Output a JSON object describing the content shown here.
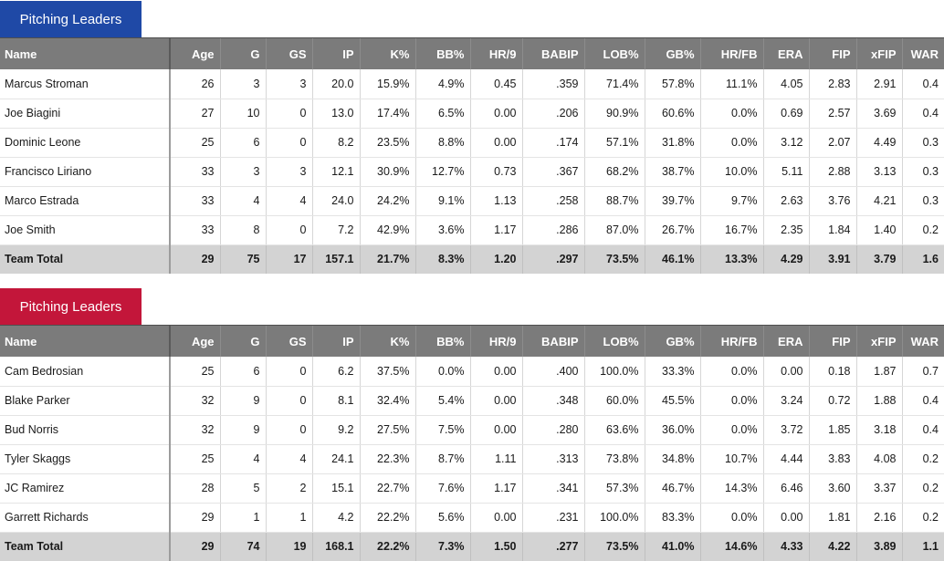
{
  "tables": [
    {
      "title": "Pitching Leaders",
      "headers": [
        "Name",
        "Age",
        "G",
        "GS",
        "IP",
        "K%",
        "BB%",
        "HR/9",
        "BABIP",
        "LOB%",
        "GB%",
        "HR/FB",
        "ERA",
        "FIP",
        "xFIP",
        "WAR"
      ],
      "rows": [
        [
          "Marcus Stroman",
          "26",
          "3",
          "3",
          "20.0",
          "15.9%",
          "4.9%",
          "0.45",
          ".359",
          "71.4%",
          "57.8%",
          "11.1%",
          "4.05",
          "2.83",
          "2.91",
          "0.4"
        ],
        [
          "Joe Biagini",
          "27",
          "10",
          "0",
          "13.0",
          "17.4%",
          "6.5%",
          "0.00",
          ".206",
          "90.9%",
          "60.6%",
          "0.0%",
          "0.69",
          "2.57",
          "3.69",
          "0.4"
        ],
        [
          "Dominic Leone",
          "25",
          "6",
          "0",
          "8.2",
          "23.5%",
          "8.8%",
          "0.00",
          ".174",
          "57.1%",
          "31.8%",
          "0.0%",
          "3.12",
          "2.07",
          "4.49",
          "0.3"
        ],
        [
          "Francisco Liriano",
          "33",
          "3",
          "3",
          "12.1",
          "30.9%",
          "12.7%",
          "0.73",
          ".367",
          "68.2%",
          "38.7%",
          "10.0%",
          "5.11",
          "2.88",
          "3.13",
          "0.3"
        ],
        [
          "Marco Estrada",
          "33",
          "4",
          "4",
          "24.0",
          "24.2%",
          "9.1%",
          "1.13",
          ".258",
          "88.7%",
          "39.7%",
          "9.7%",
          "2.63",
          "3.76",
          "4.21",
          "0.3"
        ],
        [
          "Joe Smith",
          "33",
          "8",
          "0",
          "7.2",
          "42.9%",
          "3.6%",
          "1.17",
          ".286",
          "87.0%",
          "26.7%",
          "16.7%",
          "2.35",
          "1.84",
          "1.40",
          "0.2"
        ]
      ],
      "total": [
        "Team Total",
        "29",
        "75",
        "17",
        "157.1",
        "21.7%",
        "8.3%",
        "1.20",
        ".297",
        "73.5%",
        "46.1%",
        "13.3%",
        "4.29",
        "3.91",
        "3.79",
        "1.6"
      ]
    },
    {
      "title": "Pitching Leaders",
      "headers": [
        "Name",
        "Age",
        "G",
        "GS",
        "IP",
        "K%",
        "BB%",
        "HR/9",
        "BABIP",
        "LOB%",
        "GB%",
        "HR/FB",
        "ERA",
        "FIP",
        "xFIP",
        "WAR"
      ],
      "rows": [
        [
          "Cam Bedrosian",
          "25",
          "6",
          "0",
          "6.2",
          "37.5%",
          "0.0%",
          "0.00",
          ".400",
          "100.0%",
          "33.3%",
          "0.0%",
          "0.00",
          "0.18",
          "1.87",
          "0.7"
        ],
        [
          "Blake Parker",
          "32",
          "9",
          "0",
          "8.1",
          "32.4%",
          "5.4%",
          "0.00",
          ".348",
          "60.0%",
          "45.5%",
          "0.0%",
          "3.24",
          "0.72",
          "1.88",
          "0.4"
        ],
        [
          "Bud Norris",
          "32",
          "9",
          "0",
          "9.2",
          "27.5%",
          "7.5%",
          "0.00",
          ".280",
          "63.6%",
          "36.0%",
          "0.0%",
          "3.72",
          "1.85",
          "3.18",
          "0.4"
        ],
        [
          "Tyler Skaggs",
          "25",
          "4",
          "4",
          "24.1",
          "22.3%",
          "8.7%",
          "1.11",
          ".313",
          "73.8%",
          "34.8%",
          "10.7%",
          "4.44",
          "3.83",
          "4.08",
          "0.2"
        ],
        [
          "JC Ramirez",
          "28",
          "5",
          "2",
          "15.1",
          "22.7%",
          "7.6%",
          "1.17",
          ".341",
          "57.3%",
          "46.7%",
          "14.3%",
          "6.46",
          "3.60",
          "3.37",
          "0.2"
        ],
        [
          "Garrett Richards",
          "29",
          "1",
          "1",
          "4.2",
          "22.2%",
          "5.6%",
          "0.00",
          ".231",
          "100.0%",
          "83.3%",
          "0.0%",
          "0.00",
          "1.81",
          "2.16",
          "0.2"
        ]
      ],
      "total": [
        "Team Total",
        "29",
        "74",
        "19",
        "168.1",
        "22.2%",
        "7.3%",
        "1.50",
        ".277",
        "73.5%",
        "41.0%",
        "14.6%",
        "4.33",
        "4.22",
        "3.89",
        "1.1"
      ]
    }
  ],
  "colors": {
    "tab_blue": "#1f49a6",
    "tab_red": "#c3163a",
    "header_bg": "#7b7b7b",
    "total_bg": "#d3d3d3"
  }
}
